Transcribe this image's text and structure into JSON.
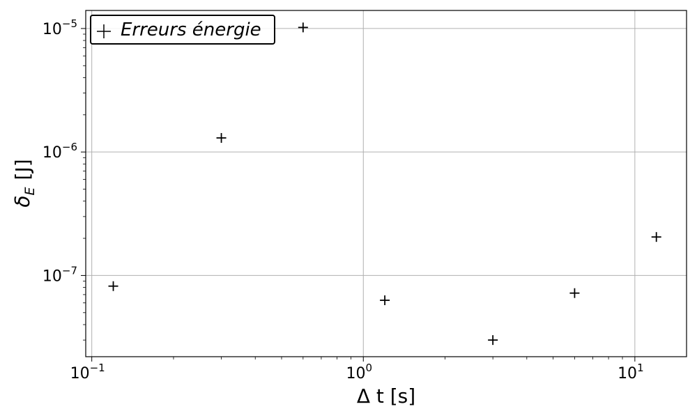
{
  "chart_data": {
    "type": "scatter",
    "xlabel": "Δ t [s]",
    "ylabel": {
      "main": "δ",
      "sub": "E",
      "unit": "[J]"
    },
    "x_scale": "log",
    "y_scale": "log",
    "xlim": [
      0.095,
      15.5
    ],
    "ylim": [
      2.2e-08,
      1.4e-05
    ],
    "grid": true,
    "legend_position": "top-left",
    "marker": "+",
    "marker_color": "#000000",
    "x_ticks": [
      {
        "value": 0.1,
        "base": "10",
        "exp": "−1"
      },
      {
        "value": 1,
        "base": "10",
        "exp": "0"
      },
      {
        "value": 10,
        "base": "10",
        "exp": "1"
      }
    ],
    "y_ticks": [
      {
        "value": 1e-07,
        "base": "10",
        "exp": "−7"
      },
      {
        "value": 1e-06,
        "base": "10",
        "exp": "−6"
      },
      {
        "value": 1e-05,
        "base": "10",
        "exp": "−5"
      }
    ],
    "series": [
      {
        "name": "Erreurs énergie",
        "points": [
          {
            "x": 0.12,
            "y": 8.2e-08
          },
          {
            "x": 0.3,
            "y": 1.3e-06
          },
          {
            "x": 0.6,
            "y": 1.02e-05
          },
          {
            "x": 1.2,
            "y": 6.3e-08
          },
          {
            "x": 3,
            "y": 3e-08
          },
          {
            "x": 6,
            "y": 7.2e-08
          },
          {
            "x": 12,
            "y": 2.05e-07
          }
        ]
      }
    ]
  }
}
